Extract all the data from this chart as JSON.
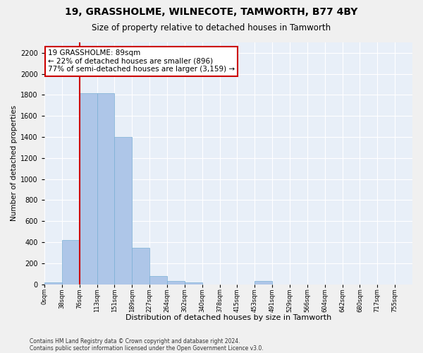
{
  "title": "19, GRASSHOLME, WILNECOTE, TAMWORTH, B77 4BY",
  "subtitle": "Size of property relative to detached houses in Tamworth",
  "xlabel": "Distribution of detached houses by size in Tamworth",
  "ylabel": "Number of detached properties",
  "bar_color": "#aec6e8",
  "bar_edge_color": "#7aafd4",
  "background_color": "#e8eff8",
  "fig_background_color": "#f0f0f0",
  "grid_color": "#ffffff",
  "bin_labels": [
    "0sqm",
    "38sqm",
    "76sqm",
    "113sqm",
    "151sqm",
    "189sqm",
    "227sqm",
    "264sqm",
    "302sqm",
    "340sqm",
    "378sqm",
    "415sqm",
    "453sqm",
    "491sqm",
    "529sqm",
    "566sqm",
    "604sqm",
    "642sqm",
    "680sqm",
    "717sqm",
    "755sqm"
  ],
  "bar_heights": [
    15,
    420,
    1820,
    1820,
    1400,
    350,
    75,
    30,
    15,
    0,
    0,
    0,
    30,
    0,
    0,
    0,
    0,
    0,
    0,
    0,
    0
  ],
  "ylim": [
    0,
    2300
  ],
  "yticks": [
    0,
    200,
    400,
    600,
    800,
    1000,
    1200,
    1400,
    1600,
    1800,
    2000,
    2200
  ],
  "property_bin_index": 2,
  "annotation_title": "19 GRASSHOLME: 89sqm",
  "annotation_line1": "← 22% of detached houses are smaller (896)",
  "annotation_line2": "77% of semi-detached houses are larger (3,159) →",
  "vline_color": "#cc0000",
  "annotation_box_color": "#ffffff",
  "annotation_box_edge": "#cc0000",
  "footer_line1": "Contains HM Land Registry data © Crown copyright and database right 2024.",
  "footer_line2": "Contains public sector information licensed under the Open Government Licence v3.0."
}
